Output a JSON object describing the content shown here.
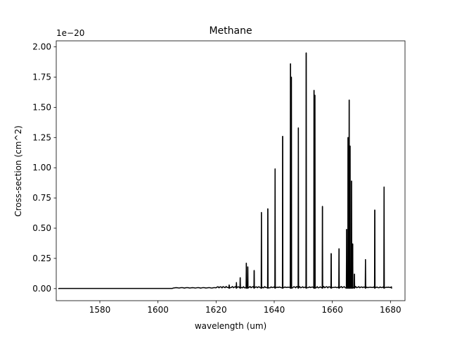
{
  "chart_data": {
    "type": "line",
    "title": "Methane",
    "xlabel": "wavelength (um)",
    "ylabel": "Cross-section (cm^2)",
    "y_offset_label": "1e−20",
    "xlim": [
      1565,
      1685
    ],
    "ylim": [
      -0.1,
      2.05
    ],
    "xticks": [
      1580,
      1600,
      1620,
      1640,
      1660,
      1680
    ],
    "xtick_labels": [
      "1580",
      "1600",
      "1620",
      "1640",
      "1660",
      "1680"
    ],
    "yticks": [
      0.0,
      0.25,
      0.5,
      0.75,
      1.0,
      1.25,
      1.5,
      1.75,
      2.0
    ],
    "ytick_labels": [
      "0.00",
      "0.25",
      "0.50",
      "0.75",
      "1.00",
      "1.25",
      "1.50",
      "1.75",
      "2.00"
    ],
    "line_color": "#000000",
    "series": [
      {
        "name": "Methane",
        "x_range": [
          1565.7,
          1680.4
        ],
        "peaks": [
          {
            "x": 1624.5,
            "y": 0.03
          },
          {
            "x": 1627.0,
            "y": 0.05
          },
          {
            "x": 1628.3,
            "y": 0.09
          },
          {
            "x": 1630.4,
            "y": 0.21
          },
          {
            "x": 1630.9,
            "y": 0.18
          },
          {
            "x": 1633.1,
            "y": 0.15
          },
          {
            "x": 1635.6,
            "y": 0.63
          },
          {
            "x": 1637.8,
            "y": 0.66
          },
          {
            "x": 1640.3,
            "y": 0.99
          },
          {
            "x": 1642.9,
            "y": 1.26
          },
          {
            "x": 1645.6,
            "y": 1.86
          },
          {
            "x": 1645.9,
            "y": 1.75
          },
          {
            "x": 1648.3,
            "y": 1.33
          },
          {
            "x": 1651.0,
            "y": 1.95
          },
          {
            "x": 1653.7,
            "y": 1.64
          },
          {
            "x": 1654.0,
            "y": 1.6
          },
          {
            "x": 1656.6,
            "y": 0.68
          },
          {
            "x": 1659.6,
            "y": 0.29
          },
          {
            "x": 1662.3,
            "y": 0.33
          },
          {
            "x": 1664.9,
            "y": 0.49
          },
          {
            "x": 1665.4,
            "y": 1.25
          },
          {
            "x": 1665.8,
            "y": 1.56
          },
          {
            "x": 1666.1,
            "y": 1.18
          },
          {
            "x": 1666.6,
            "y": 0.89
          },
          {
            "x": 1667.0,
            "y": 0.37
          },
          {
            "x": 1667.6,
            "y": 0.12
          },
          {
            "x": 1671.4,
            "y": 0.24
          },
          {
            "x": 1674.6,
            "y": 0.65
          },
          {
            "x": 1677.8,
            "y": 0.84
          }
        ]
      }
    ]
  }
}
